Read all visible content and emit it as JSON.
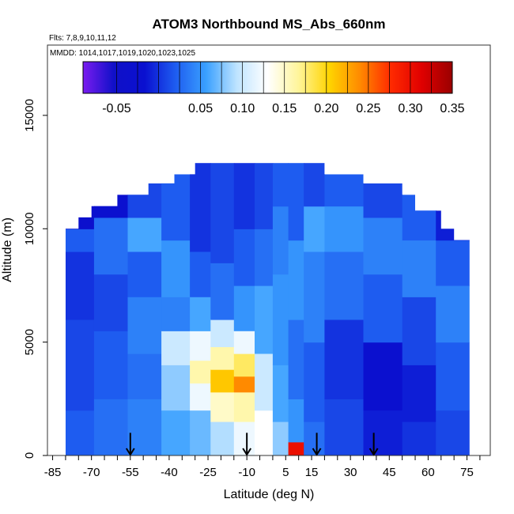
{
  "chart_data": {
    "type": "heatmap",
    "title": "ATOM3 Northbound MS_Abs_660nm",
    "flights_note": "Flts: 7,8,9,10,11,12",
    "dates_note": "MMDD: 1014,1017,1019,1020,1023,1025",
    "xlabel": "Latitude (deg N)",
    "ylabel": "Altitude (m)",
    "xlim": [
      -87,
      84
    ],
    "ylim": [
      0,
      18100
    ],
    "x_tick_labels": [
      "-85",
      "-70",
      "-55",
      "-40",
      "-25",
      "-10",
      "5",
      "15",
      "30",
      "45",
      "60",
      "75"
    ],
    "x_tick_values": [
      -85,
      -70,
      -55,
      -40,
      -25,
      -10,
      5,
      15,
      30,
      45,
      60,
      75
    ],
    "x_minor_step": 5,
    "y_tick_labels": [
      "0",
      "5000",
      "10000",
      "15000"
    ],
    "y_tick_values": [
      0,
      5000,
      10000,
      15000
    ],
    "colorbar": {
      "range": [
        -0.09,
        0.35
      ],
      "tick_labels": [
        "-0.05",
        "0.05",
        "0.10",
        "0.15",
        "0.20",
        "0.25",
        "0.30",
        "0.35"
      ],
      "tick_values": [
        -0.05,
        0.05,
        0.1,
        0.15,
        0.2,
        0.25,
        0.3,
        0.35
      ],
      "colors": [
        "#7a1cf0",
        "#1010c8",
        "#0a10d0",
        "#1e5cf0",
        "#3aa0ff",
        "#bfe4ff",
        "#ffffff",
        "#fff59a",
        "#ffd400",
        "#ff8a00",
        "#ff2a00",
        "#e00000",
        "#9a0000"
      ]
    },
    "profile_latitudes": [
      -55,
      -10,
      17,
      39
    ],
    "outline": [
      [
        -80,
        0
      ],
      [
        -80,
        10000
      ],
      [
        -75,
        10000
      ],
      [
        -75,
        10500
      ],
      [
        -70,
        10500
      ],
      [
        -70,
        11000
      ],
      [
        -60,
        11000
      ],
      [
        -60,
        11500
      ],
      [
        -48,
        11500
      ],
      [
        -48,
        12000
      ],
      [
        -38,
        12000
      ],
      [
        -38,
        12400
      ],
      [
        -30,
        12400
      ],
      [
        -30,
        12900
      ],
      [
        20,
        12900
      ],
      [
        20,
        12400
      ],
      [
        35,
        12400
      ],
      [
        35,
        12000
      ],
      [
        50,
        12000
      ],
      [
        50,
        11500
      ],
      [
        55,
        11500
      ],
      [
        55,
        10800
      ],
      [
        65,
        10800
      ],
      [
        65,
        10000
      ],
      [
        70,
        10000
      ],
      [
        70,
        9500
      ],
      [
        76,
        9500
      ],
      [
        76,
        0
      ]
    ],
    "columns": [
      {
        "lat": [
          -80,
          -69
        ],
        "layers": [
          [
            0,
            2000,
            0.02
          ],
          [
            2000,
            6000,
            0.01
          ],
          [
            6000,
            9000,
            0.0
          ],
          [
            9000,
            10000,
            0.02
          ],
          [
            10000,
            11000,
            -0.03
          ]
        ]
      },
      {
        "lat": [
          -69,
          -56
        ],
        "layers": [
          [
            0,
            2500,
            0.03
          ],
          [
            2500,
            5500,
            0.02
          ],
          [
            5500,
            8000,
            0.01
          ],
          [
            8000,
            10500,
            0.03
          ],
          [
            10500,
            11500,
            -0.02
          ]
        ]
      },
      {
        "lat": [
          -56,
          -43
        ],
        "layers": [
          [
            0,
            2500,
            0.04
          ],
          [
            2500,
            4500,
            0.03
          ],
          [
            4500,
            7000,
            0.04
          ],
          [
            7000,
            9000,
            0.02
          ],
          [
            9000,
            10500,
            0.06
          ],
          [
            10500,
            12000,
            0.01
          ]
        ]
      },
      {
        "lat": [
          -43,
          -32
        ],
        "layers": [
          [
            0,
            2000,
            0.06
          ],
          [
            2000,
            4000,
            0.08
          ],
          [
            4000,
            5500,
            0.1
          ],
          [
            5500,
            7000,
            0.04
          ],
          [
            7000,
            9500,
            0.05
          ],
          [
            9500,
            12400,
            0.02
          ]
        ]
      },
      {
        "lat": [
          -32,
          -24
        ],
        "layers": [
          [
            0,
            2000,
            0.07
          ],
          [
            2000,
            3200,
            0.12
          ],
          [
            3200,
            4200,
            0.16
          ],
          [
            4200,
            5500,
            0.12
          ],
          [
            5500,
            7000,
            0.06
          ],
          [
            7000,
            9000,
            0.02
          ],
          [
            9000,
            12900,
            0.0
          ]
        ]
      },
      {
        "lat": [
          -24,
          -15
        ],
        "layers": [
          [
            0,
            1500,
            0.09
          ],
          [
            1500,
            2800,
            0.15
          ],
          [
            2800,
            3800,
            0.21
          ],
          [
            3800,
            4800,
            0.16
          ],
          [
            4800,
            6000,
            0.1
          ],
          [
            6000,
            8500,
            0.03
          ],
          [
            8500,
            12900,
            0.01
          ]
        ]
      },
      {
        "lat": [
          -15,
          -7
        ],
        "layers": [
          [
            0,
            1500,
            0.12
          ],
          [
            1500,
            2800,
            0.16
          ],
          [
            2800,
            3500,
            0.24
          ],
          [
            3500,
            4500,
            0.18
          ],
          [
            4500,
            5500,
            0.12
          ],
          [
            5500,
            7500,
            0.05
          ],
          [
            7500,
            10000,
            0.02
          ],
          [
            10000,
            12900,
            0.0
          ]
        ]
      },
      {
        "lat": [
          -7,
          0
        ],
        "layers": [
          [
            0,
            2000,
            0.13
          ],
          [
            2000,
            4500,
            0.1
          ],
          [
            4500,
            7500,
            0.06
          ],
          [
            7500,
            10000,
            0.03
          ],
          [
            10000,
            12900,
            0.01
          ]
        ]
      },
      {
        "lat": [
          0,
          6
        ],
        "layers": [
          [
            0,
            1500,
            0.08
          ],
          [
            1500,
            4000,
            0.06
          ],
          [
            4000,
            8000,
            0.05
          ],
          [
            8000,
            11000,
            0.04
          ],
          [
            11000,
            12900,
            0.02
          ]
        ]
      },
      {
        "lat": [
          6,
          12
        ],
        "layers": [
          [
            0,
            600,
            0.3
          ],
          [
            600,
            2500,
            0.05
          ],
          [
            2500,
            6000,
            0.03
          ],
          [
            6000,
            9500,
            0.05
          ],
          [
            9500,
            12900,
            0.02
          ]
        ]
      },
      {
        "lat": [
          12,
          20
        ],
        "layers": [
          [
            0,
            1500,
            0.03
          ],
          [
            1500,
            5000,
            0.02
          ],
          [
            5000,
            9000,
            0.04
          ],
          [
            9000,
            11000,
            0.06
          ],
          [
            11000,
            12900,
            0.01
          ]
        ]
      },
      {
        "lat": [
          20,
          35
        ],
        "layers": [
          [
            0,
            2500,
            0.01
          ],
          [
            2500,
            6000,
            0.0
          ],
          [
            6000,
            9000,
            0.03
          ],
          [
            9000,
            11000,
            0.05
          ],
          [
            11000,
            12400,
            0.02
          ]
        ]
      },
      {
        "lat": [
          35,
          50
        ],
        "layers": [
          [
            0,
            2000,
            -0.01
          ],
          [
            2000,
            5000,
            -0.02
          ],
          [
            5000,
            8000,
            0.02
          ],
          [
            8000,
            10500,
            0.04
          ],
          [
            10500,
            12000,
            0.01
          ]
        ]
      },
      {
        "lat": [
          50,
          63
        ],
        "layers": [
          [
            0,
            1500,
            0.0
          ],
          [
            1500,
            4000,
            -0.01
          ],
          [
            4000,
            7000,
            0.01
          ],
          [
            7000,
            9500,
            0.04
          ],
          [
            9500,
            11500,
            0.02
          ]
        ]
      },
      {
        "lat": [
          63,
          76
        ],
        "layers": [
          [
            0,
            2000,
            0.01
          ],
          [
            2000,
            5000,
            0.02
          ],
          [
            5000,
            7500,
            0.04
          ],
          [
            7500,
            9500,
            0.02
          ],
          [
            9500,
            10800,
            -0.01
          ]
        ]
      }
    ]
  }
}
